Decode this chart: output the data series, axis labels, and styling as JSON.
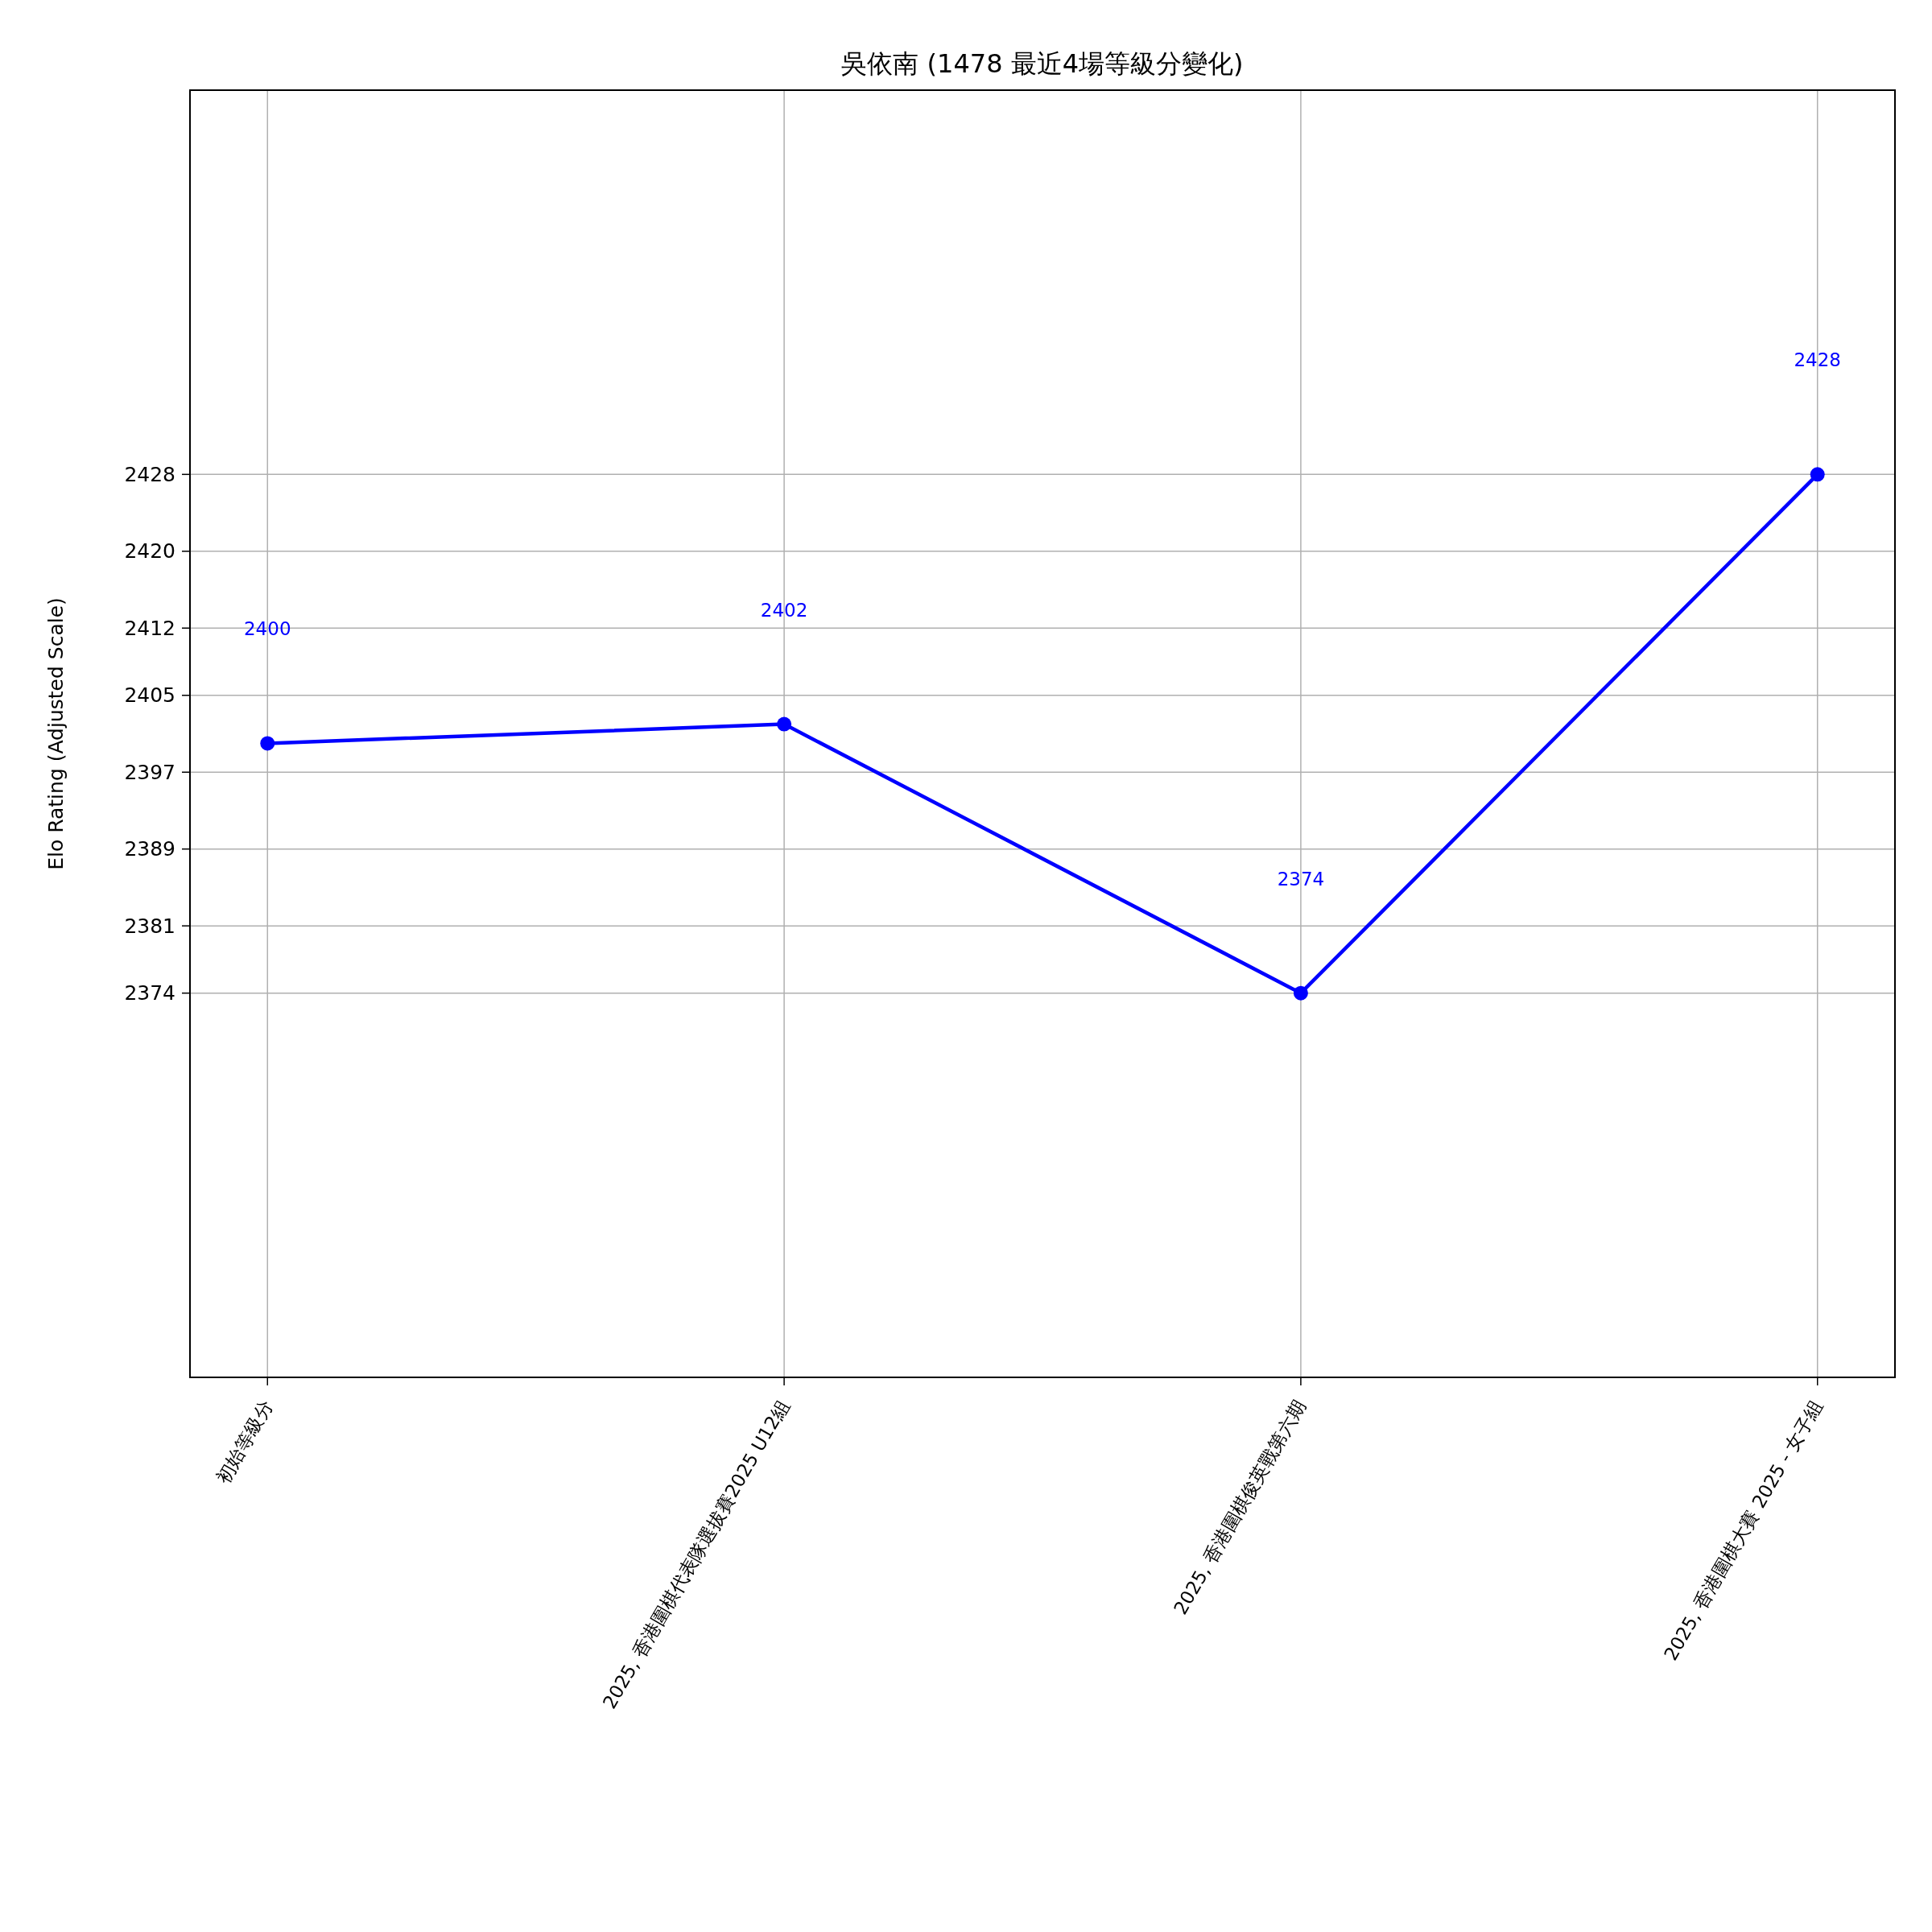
{
  "chart_data": {
    "type": "line",
    "title": "吳依南 (1478 最近4場等級分變化)",
    "ylabel": "Elo Rating (Adjusted Scale)",
    "categories": [
      "初始等級分",
      "2025, 香港圍棋代表隊選拔賽2025 U12組",
      "2025, 香港圍棋俊英戰第六期",
      "2025, 香港圍棋大賽 2025 - 女子組"
    ],
    "series": [
      {
        "color": "#0000ff",
        "values": [
          2400,
          2402,
          2374,
          2428
        ]
      }
    ],
    "ylim": [
      2334,
      2468
    ],
    "yticks": [
      2374,
      2381,
      2389,
      2397,
      2405,
      2412,
      2420,
      2428
    ],
    "annotations": [
      "2400",
      "2402",
      "2374",
      "2428"
    ],
    "grid": true,
    "marker": "circle",
    "line_style": "solid"
  }
}
